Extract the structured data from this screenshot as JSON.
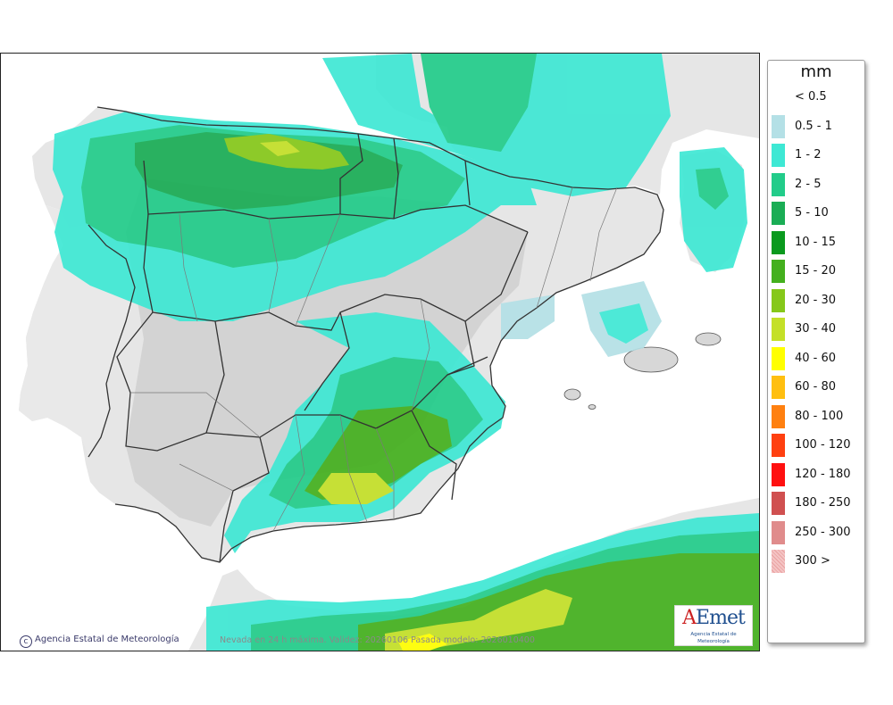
{
  "legend": {
    "title": "mm",
    "items": [
      {
        "label": "< 0.5",
        "color": "#ffffff"
      },
      {
        "label": "0.5 - 1",
        "color": "#b4e0e6"
      },
      {
        "label": "1 - 2",
        "color": "#3ee8d4"
      },
      {
        "label": "2 - 5",
        "color": "#22cc8a"
      },
      {
        "label": "5 - 10",
        "color": "#1aad55"
      },
      {
        "label": "10 - 15",
        "color": "#0a9a1e"
      },
      {
        "label": "15 - 20",
        "color": "#44b01e"
      },
      {
        "label": "20 - 30",
        "color": "#86c81a"
      },
      {
        "label": "30 - 40",
        "color": "#c4e028"
      },
      {
        "label": "40 - 60",
        "color": "#ffff00"
      },
      {
        "label": "60 - 80",
        "color": "#ffbf10"
      },
      {
        "label": "80 - 100",
        "color": "#ff8010"
      },
      {
        "label": "100 - 120",
        "color": "#ff4010"
      },
      {
        "label": "120 - 180",
        "color": "#ff1010"
      },
      {
        "label": "180 - 250",
        "color": "#d05050"
      },
      {
        "label": "250 - 300",
        "color": "#e08c8c"
      },
      {
        "label": "300 >",
        "color": "#f4c4c4"
      }
    ]
  },
  "map": {
    "credit": "Agencia Estatal de Meteorología",
    "credit_symbol": "c",
    "caption": "Nevada en 24 h máxima. Validez: 20260106 Pasada modelo: 2026010400",
    "logo": {
      "text": "AEmet",
      "subtitle": "Agencia Estatal de Meteorología"
    },
    "colors": {
      "sea": "#ffffff",
      "land": "#e6e6e6",
      "relief": "#cfcfcf",
      "border": "#333333",
      "logo_a": "#cc2222",
      "logo_rest": "#1f4f8f"
    }
  }
}
